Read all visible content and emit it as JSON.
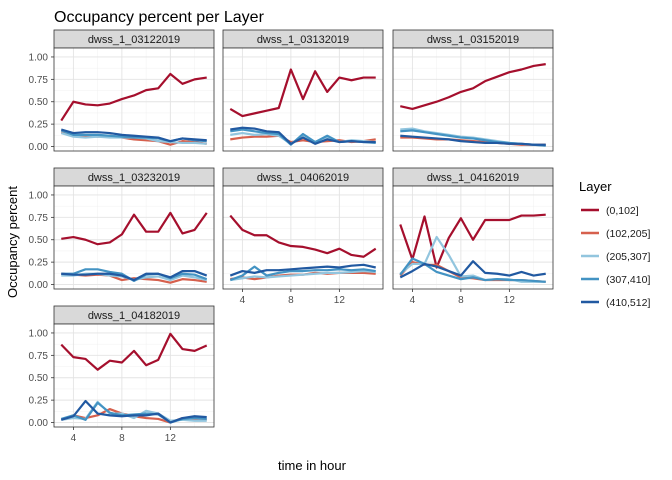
{
  "chart_data": {
    "type": "line",
    "title": "Occupancy percent per Layer",
    "xlabel": "time in hour",
    "ylabel": "Occupancy percent",
    "xlim": [
      2.4,
      15.6
    ],
    "ylim": [
      -0.05,
      1.1
    ],
    "x_ticks": [
      4,
      8,
      12
    ],
    "y_ticks": [
      0.0,
      0.25,
      0.5,
      0.75,
      1.0
    ],
    "y_tick_labels": [
      "0.00",
      "0.25",
      "0.50",
      "0.75",
      "1.00"
    ],
    "grid": true,
    "legend": {
      "title": "Layer",
      "placement": "right",
      "entries": [
        {
          "name": "(0,102]",
          "color": "#a50f2d"
        },
        {
          "name": "(102,205]",
          "color": "#d6604d"
        },
        {
          "name": "(205,307]",
          "color": "#92c5de"
        },
        {
          "name": "(307,410]",
          "color": "#4393c3"
        },
        {
          "name": "(410,512]",
          "color": "#2159a1"
        }
      ]
    },
    "x": [
      3,
      4,
      5,
      6,
      7,
      8,
      9,
      10,
      11,
      12,
      13,
      14,
      15
    ],
    "panels": [
      {
        "label": "dwss_1_03122019",
        "series": [
          {
            "name": "(0,102]",
            "values": [
              0.29,
              0.5,
              0.47,
              0.46,
              0.48,
              0.53,
              0.57,
              0.63,
              0.65,
              0.81,
              0.7,
              0.75,
              0.77
            ]
          },
          {
            "name": "(102,205]",
            "values": [
              0.16,
              0.12,
              0.12,
              0.11,
              0.12,
              0.1,
              0.08,
              0.07,
              0.06,
              0.02,
              0.06,
              0.05,
              0.03
            ]
          },
          {
            "name": "(205,307]",
            "values": [
              0.15,
              0.11,
              0.1,
              0.11,
              0.1,
              0.1,
              0.1,
              0.09,
              0.06,
              0.05,
              0.04,
              0.04,
              0.03
            ]
          },
          {
            "name": "(307,410]",
            "values": [
              0.18,
              0.13,
              0.13,
              0.13,
              0.12,
              0.11,
              0.1,
              0.1,
              0.09,
              0.06,
              0.09,
              0.07,
              0.06
            ]
          },
          {
            "name": "(410,512]",
            "values": [
              0.19,
              0.15,
              0.16,
              0.16,
              0.15,
              0.13,
              0.12,
              0.11,
              0.1,
              0.06,
              0.09,
              0.08,
              0.07
            ]
          }
        ]
      },
      {
        "label": "dwss_1_03132019",
        "series": [
          {
            "name": "(0,102]",
            "values": [
              0.42,
              0.34,
              0.37,
              0.4,
              0.43,
              0.86,
              0.53,
              0.84,
              0.61,
              0.77,
              0.74,
              0.77,
              0.77
            ]
          },
          {
            "name": "(102,205]",
            "values": [
              0.08,
              0.1,
              0.11,
              0.11,
              0.12,
              0.05,
              0.07,
              0.05,
              0.06,
              0.07,
              0.05,
              0.06,
              0.08
            ]
          },
          {
            "name": "(205,307]",
            "values": [
              0.13,
              0.15,
              0.13,
              0.14,
              0.12,
              0.03,
              0.12,
              0.05,
              0.1,
              0.05,
              0.07,
              0.06,
              0.05
            ]
          },
          {
            "name": "(307,410]",
            "values": [
              0.17,
              0.19,
              0.17,
              0.15,
              0.14,
              0.02,
              0.14,
              0.05,
              0.12,
              0.05,
              0.06,
              0.05,
              0.04
            ]
          },
          {
            "name": "(410,512]",
            "values": [
              0.19,
              0.21,
              0.2,
              0.17,
              0.16,
              0.03,
              0.1,
              0.03,
              0.08,
              0.05,
              0.06,
              0.05,
              0.05
            ]
          }
        ]
      },
      {
        "label": "dwss_1_03152019",
        "series": [
          {
            "name": "(0,102]",
            "values": [
              0.45,
              0.42,
              0.46,
              0.5,
              0.55,
              0.61,
              0.65,
              0.73,
              0.78,
              0.83,
              0.86,
              0.9,
              0.92
            ]
          },
          {
            "name": "(102,205]",
            "values": [
              0.1,
              0.1,
              0.09,
              0.08,
              0.08,
              0.07,
              0.06,
              0.05,
              0.04,
              0.03,
              0.02,
              0.02,
              0.02
            ]
          },
          {
            "name": "(205,307]",
            "values": [
              0.19,
              0.2,
              0.17,
              0.15,
              0.13,
              0.11,
              0.1,
              0.08,
              0.06,
              0.04,
              0.03,
              0.02,
              0.01
            ]
          },
          {
            "name": "(307,410]",
            "values": [
              0.17,
              0.18,
              0.16,
              0.14,
              0.12,
              0.1,
              0.09,
              0.07,
              0.05,
              0.04,
              0.03,
              0.02,
              0.01
            ]
          },
          {
            "name": "(410,512]",
            "values": [
              0.12,
              0.11,
              0.1,
              0.09,
              0.08,
              0.06,
              0.05,
              0.04,
              0.04,
              0.03,
              0.03,
              0.02,
              0.02
            ]
          }
        ]
      },
      {
        "label": "dwss_1_03232019",
        "series": [
          {
            "name": "(0,102]",
            "values": [
              0.51,
              0.53,
              0.5,
              0.45,
              0.47,
              0.56,
              0.78,
              0.59,
              0.59,
              0.8,
              0.57,
              0.61,
              0.8
            ]
          },
          {
            "name": "(102,205]",
            "values": [
              0.12,
              0.11,
              0.1,
              0.11,
              0.1,
              0.05,
              0.07,
              0.06,
              0.05,
              0.02,
              0.06,
              0.05,
              0.03
            ]
          },
          {
            "name": "(205,307]",
            "values": [
              0.1,
              0.1,
              0.12,
              0.12,
              0.1,
              0.09,
              0.05,
              0.08,
              0.09,
              0.05,
              0.1,
              0.08,
              0.05
            ]
          },
          {
            "name": "(307,410]",
            "values": [
              0.12,
              0.12,
              0.17,
              0.17,
              0.14,
              0.12,
              0.04,
              0.11,
              0.12,
              0.07,
              0.12,
              0.11,
              0.06
            ]
          },
          {
            "name": "(410,512]",
            "values": [
              0.12,
              0.11,
              0.11,
              0.12,
              0.12,
              0.1,
              0.05,
              0.12,
              0.12,
              0.08,
              0.15,
              0.15,
              0.1
            ]
          }
        ]
      },
      {
        "label": "dwss_1_04062019",
        "series": [
          {
            "name": "(0,102]",
            "values": [
              0.77,
              0.61,
              0.55,
              0.55,
              0.47,
              0.43,
              0.42,
              0.39,
              0.35,
              0.4,
              0.33,
              0.31,
              0.4
            ]
          },
          {
            "name": "(102,205]",
            "values": [
              0.06,
              0.08,
              0.06,
              0.08,
              0.1,
              0.11,
              0.11,
              0.13,
              0.12,
              0.13,
              0.13,
              0.13,
              0.12
            ]
          },
          {
            "name": "(205,307]",
            "values": [
              0.05,
              0.07,
              0.09,
              0.08,
              0.09,
              0.1,
              0.11,
              0.12,
              0.13,
              0.13,
              0.14,
              0.15,
              0.14
            ]
          },
          {
            "name": "(307,410]",
            "values": [
              0.05,
              0.1,
              0.2,
              0.1,
              0.13,
              0.15,
              0.15,
              0.16,
              0.16,
              0.17,
              0.16,
              0.17,
              0.15
            ]
          },
          {
            "name": "(410,512]",
            "values": [
              0.1,
              0.15,
              0.13,
              0.16,
              0.16,
              0.17,
              0.18,
              0.19,
              0.2,
              0.19,
              0.21,
              0.22,
              0.19
            ]
          }
        ]
      },
      {
        "label": "dwss_1_04162019",
        "series": [
          {
            "name": "(0,102]",
            "values": [
              0.67,
              0.28,
              0.76,
              0.19,
              0.52,
              0.74,
              0.5,
              0.72,
              0.72,
              0.72,
              0.77,
              0.77,
              0.78
            ]
          },
          {
            "name": "(102,205]",
            "values": [
              0.1,
              0.25,
              0.22,
              0.22,
              0.15,
              0.08,
              0.07,
              0.05,
              0.05,
              0.05,
              0.05,
              0.04,
              0.03
            ]
          },
          {
            "name": "(205,307]",
            "values": [
              0.12,
              0.23,
              0.23,
              0.53,
              0.33,
              0.09,
              0.1,
              0.05,
              0.06,
              0.06,
              0.03,
              0.03,
              0.03
            ]
          },
          {
            "name": "(307,410]",
            "values": [
              0.11,
              0.29,
              0.23,
              0.14,
              0.1,
              0.06,
              0.08,
              0.05,
              0.06,
              0.05,
              0.05,
              0.04,
              0.03
            ]
          },
          {
            "name": "(410,512]",
            "values": [
              0.08,
              0.15,
              0.23,
              0.2,
              0.15,
              0.1,
              0.26,
              0.13,
              0.12,
              0.1,
              0.14,
              0.1,
              0.12
            ]
          }
        ]
      },
      {
        "label": "dwss_1_04182019",
        "series": [
          {
            "name": "(0,102]",
            "values": [
              0.87,
              0.73,
              0.71,
              0.59,
              0.69,
              0.67,
              0.8,
              0.64,
              0.7,
              0.99,
              0.82,
              0.8,
              0.86
            ]
          },
          {
            "name": "(102,205]",
            "values": [
              0.03,
              0.08,
              0.05,
              0.08,
              0.15,
              0.1,
              0.07,
              0.05,
              0.04,
              0.0,
              0.05,
              0.04,
              0.03
            ]
          },
          {
            "name": "(205,307]",
            "values": [
              0.03,
              0.05,
              0.04,
              0.23,
              0.1,
              0.1,
              0.05,
              0.13,
              0.1,
              0.02,
              0.03,
              0.02,
              0.02
            ]
          },
          {
            "name": "(307,410]",
            "values": [
              0.04,
              0.08,
              0.03,
              0.22,
              0.11,
              0.08,
              0.09,
              0.1,
              0.09,
              0.0,
              0.04,
              0.05,
              0.04
            ]
          },
          {
            "name": "(410,512]",
            "values": [
              0.03,
              0.07,
              0.24,
              0.1,
              0.08,
              0.07,
              0.08,
              0.08,
              0.1,
              0.0,
              0.05,
              0.07,
              0.06
            ]
          }
        ]
      }
    ]
  }
}
